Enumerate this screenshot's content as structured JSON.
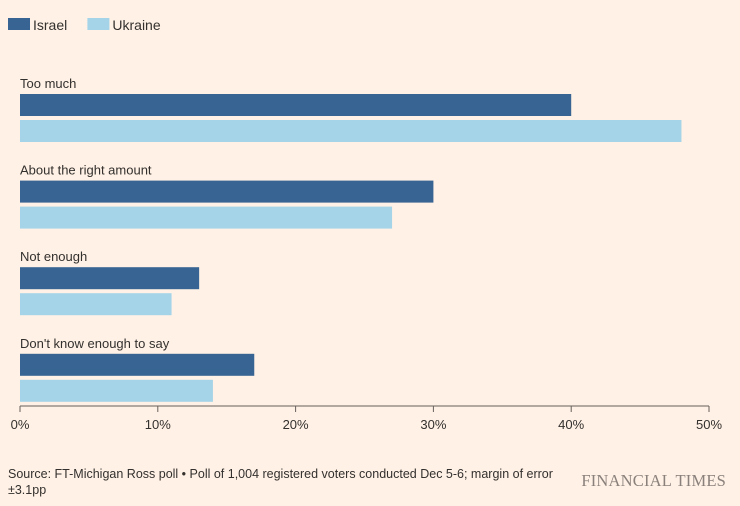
{
  "chart_data": {
    "type": "bar",
    "orientation": "horizontal",
    "title": "",
    "xlabel": "",
    "ylabel": "",
    "categories": [
      "Too much",
      "About the right amount",
      "Not enough",
      "Don't know enough to say"
    ],
    "series": [
      {
        "name": "Israel",
        "values": [
          40,
          30,
          13,
          17
        ]
      },
      {
        "name": "Ukraine",
        "values": [
          48,
          27,
          11,
          14
        ]
      }
    ],
    "xlim": [
      0,
      50
    ],
    "xticks": [
      0,
      10,
      20,
      30,
      40,
      50
    ],
    "xtick_labels": [
      "0%",
      "10%",
      "20%",
      "30%",
      "40%",
      "50%"
    ],
    "legend_position": "top-left",
    "grid": false
  },
  "colors": {
    "Israel": "#376492",
    "Ukraine": "#a5d4e9",
    "background": "#fff1e5",
    "axis": "#66605c",
    "text": "#33302e"
  },
  "footer": {
    "source": "Source: FT-Michigan Ross poll • Poll of 1,004 registered voters conducted Dec 5-6; margin of error ±3.1pp",
    "brand": "FINANCIAL TIMES"
  }
}
